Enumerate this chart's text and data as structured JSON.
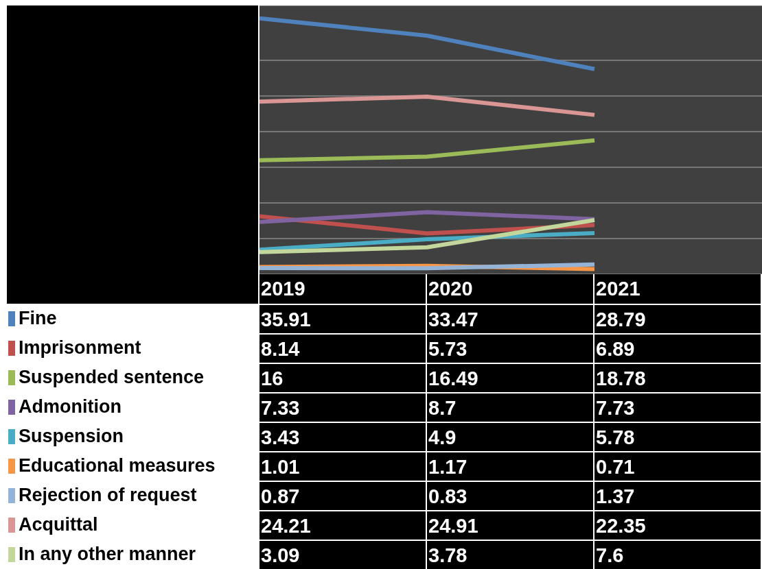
{
  "chart_data": {
    "type": "line",
    "categories": [
      "2019",
      "2020",
      "2021"
    ],
    "series": [
      {
        "name": "Fine",
        "color": "#4f81bd",
        "values": [
          35.91,
          33.47,
          28.79
        ]
      },
      {
        "name": "Imprisonment",
        "color": "#c0504d",
        "values": [
          8.14,
          5.73,
          6.89
        ]
      },
      {
        "name": "Suspended sentence",
        "color": "#9bbb59",
        "values": [
          16,
          16.49,
          18.78
        ]
      },
      {
        "name": "Admonition",
        "color": "#8064a2",
        "values": [
          7.33,
          8.7,
          7.73
        ]
      },
      {
        "name": "Suspension",
        "color": "#4bacc6",
        "values": [
          3.43,
          4.9,
          5.78
        ]
      },
      {
        "name": "Educational measures",
        "color": "#f79646",
        "values": [
          1.01,
          1.17,
          0.71
        ]
      },
      {
        "name": "Rejection of request",
        "color": "#95b3d7",
        "values": [
          0.87,
          0.83,
          1.37
        ]
      },
      {
        "name": "Acquittal",
        "color": "#d99694",
        "values": [
          24.21,
          24.91,
          22.35
        ]
      },
      {
        "name": "In any other manner",
        "color": "#c3d69b",
        "values": [
          3.09,
          3.78,
          7.6
        ]
      }
    ],
    "data_labels": true,
    "grid": "y",
    "legend": "left",
    "marker": "none",
    "line_style": "solid"
  }
}
